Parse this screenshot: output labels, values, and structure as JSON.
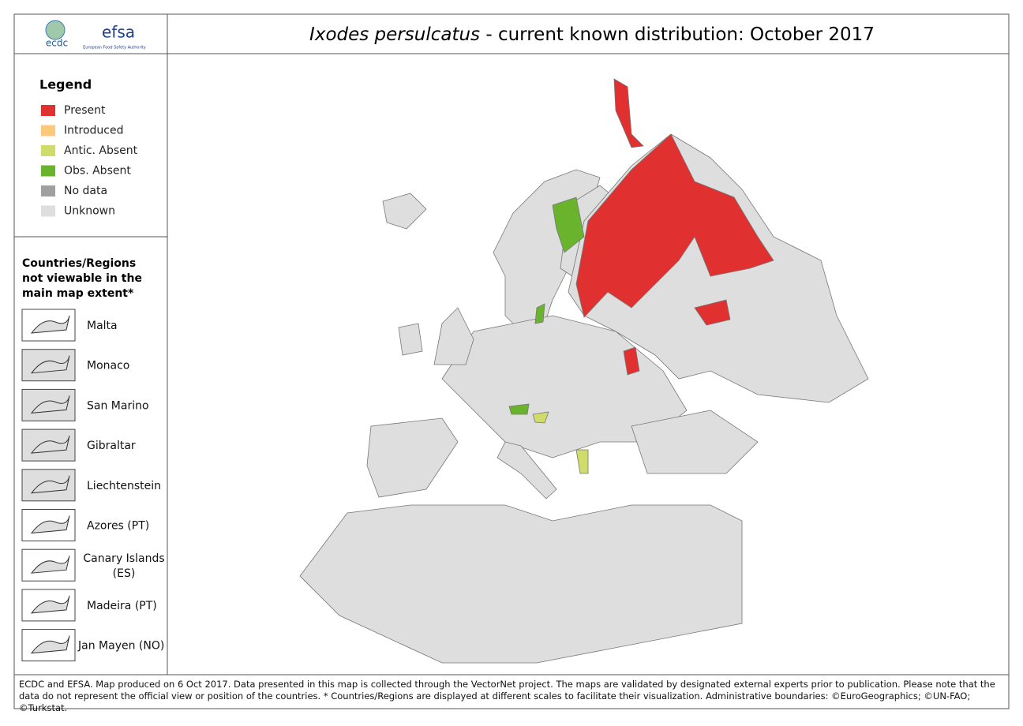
{
  "header": {
    "logos": [
      "ecdc",
      "efsa"
    ],
    "efsa_subtitle": "European Food Safety Authority",
    "title_species": "Ixodes persulcatus",
    "title_rest": "- current known distribution: October 2017"
  },
  "legend": {
    "title": "Legend",
    "items": [
      {
        "label": "Present",
        "color": "#e03030"
      },
      {
        "label": "Introduced",
        "color": "#fcc97a"
      },
      {
        "label": "Antic. Absent",
        "color": "#d0dc6a"
      },
      {
        "label": "Obs. Absent",
        "color": "#6ab42d"
      },
      {
        "label": "No data",
        "color": "#a0a0a0"
      },
      {
        "label": "Unknown",
        "color": "#dedede"
      }
    ]
  },
  "inset": {
    "title": "Countries/Regions not viewable in the main map extent*",
    "regions": [
      "Malta",
      "Monaco",
      "San Marino",
      "Gibraltar",
      "Liechtenstein",
      "Azores (PT)",
      "Canary Islands (ES)",
      "Madeira (PT)",
      "Jan Mayen (NO)"
    ]
  },
  "footer": "ECDC and EFSA. Map produced on 6 Oct 2017. Data presented in this map is collected through the VectorNet project. The maps are validated by designated external experts prior to publication. Please note that the data do not represent the official view or position of the countries. * Countries/Regions are displayed at different scales to facilitate their visualization. Administrative boundaries: ©EuroGeographics; ©UN-FAO; ©Turkstat."
}
